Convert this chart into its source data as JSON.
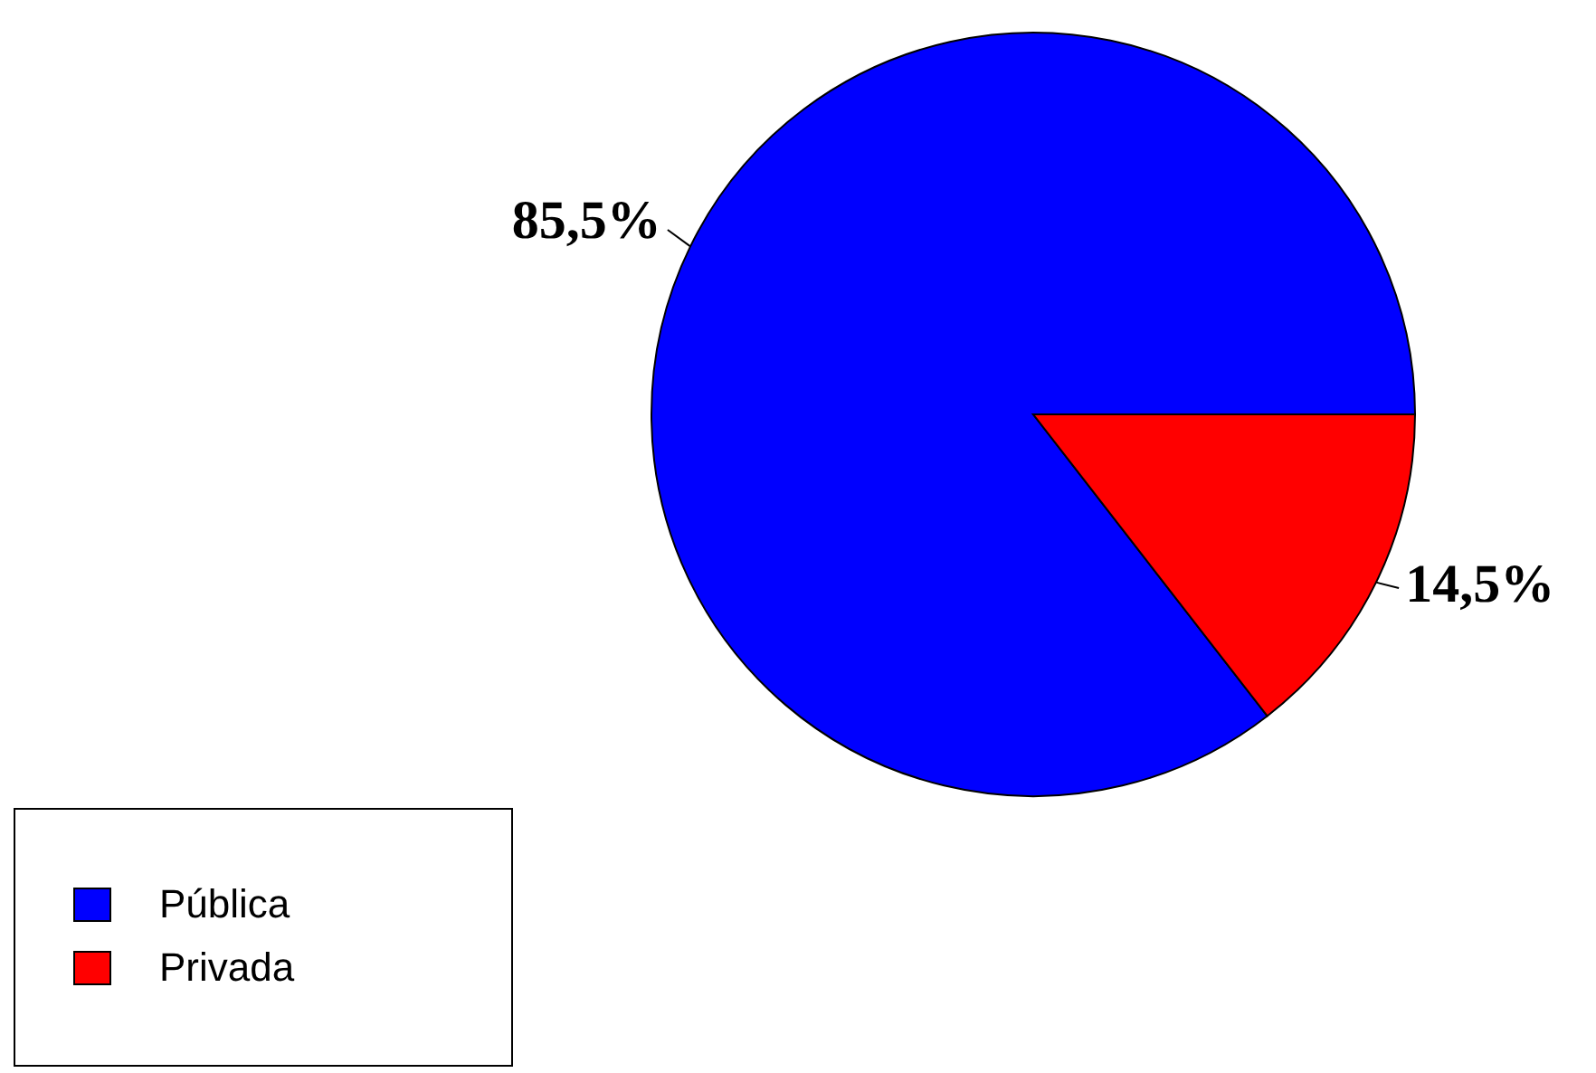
{
  "chart_data": {
    "type": "pie",
    "categories": [
      "Pública",
      "Privada"
    ],
    "values": [
      85.5,
      14.5
    ],
    "colors": [
      "#0000ff",
      "#ff0000"
    ],
    "value_labels": [
      "85,5%",
      "14,5%"
    ],
    "legend": "bottom left"
  }
}
